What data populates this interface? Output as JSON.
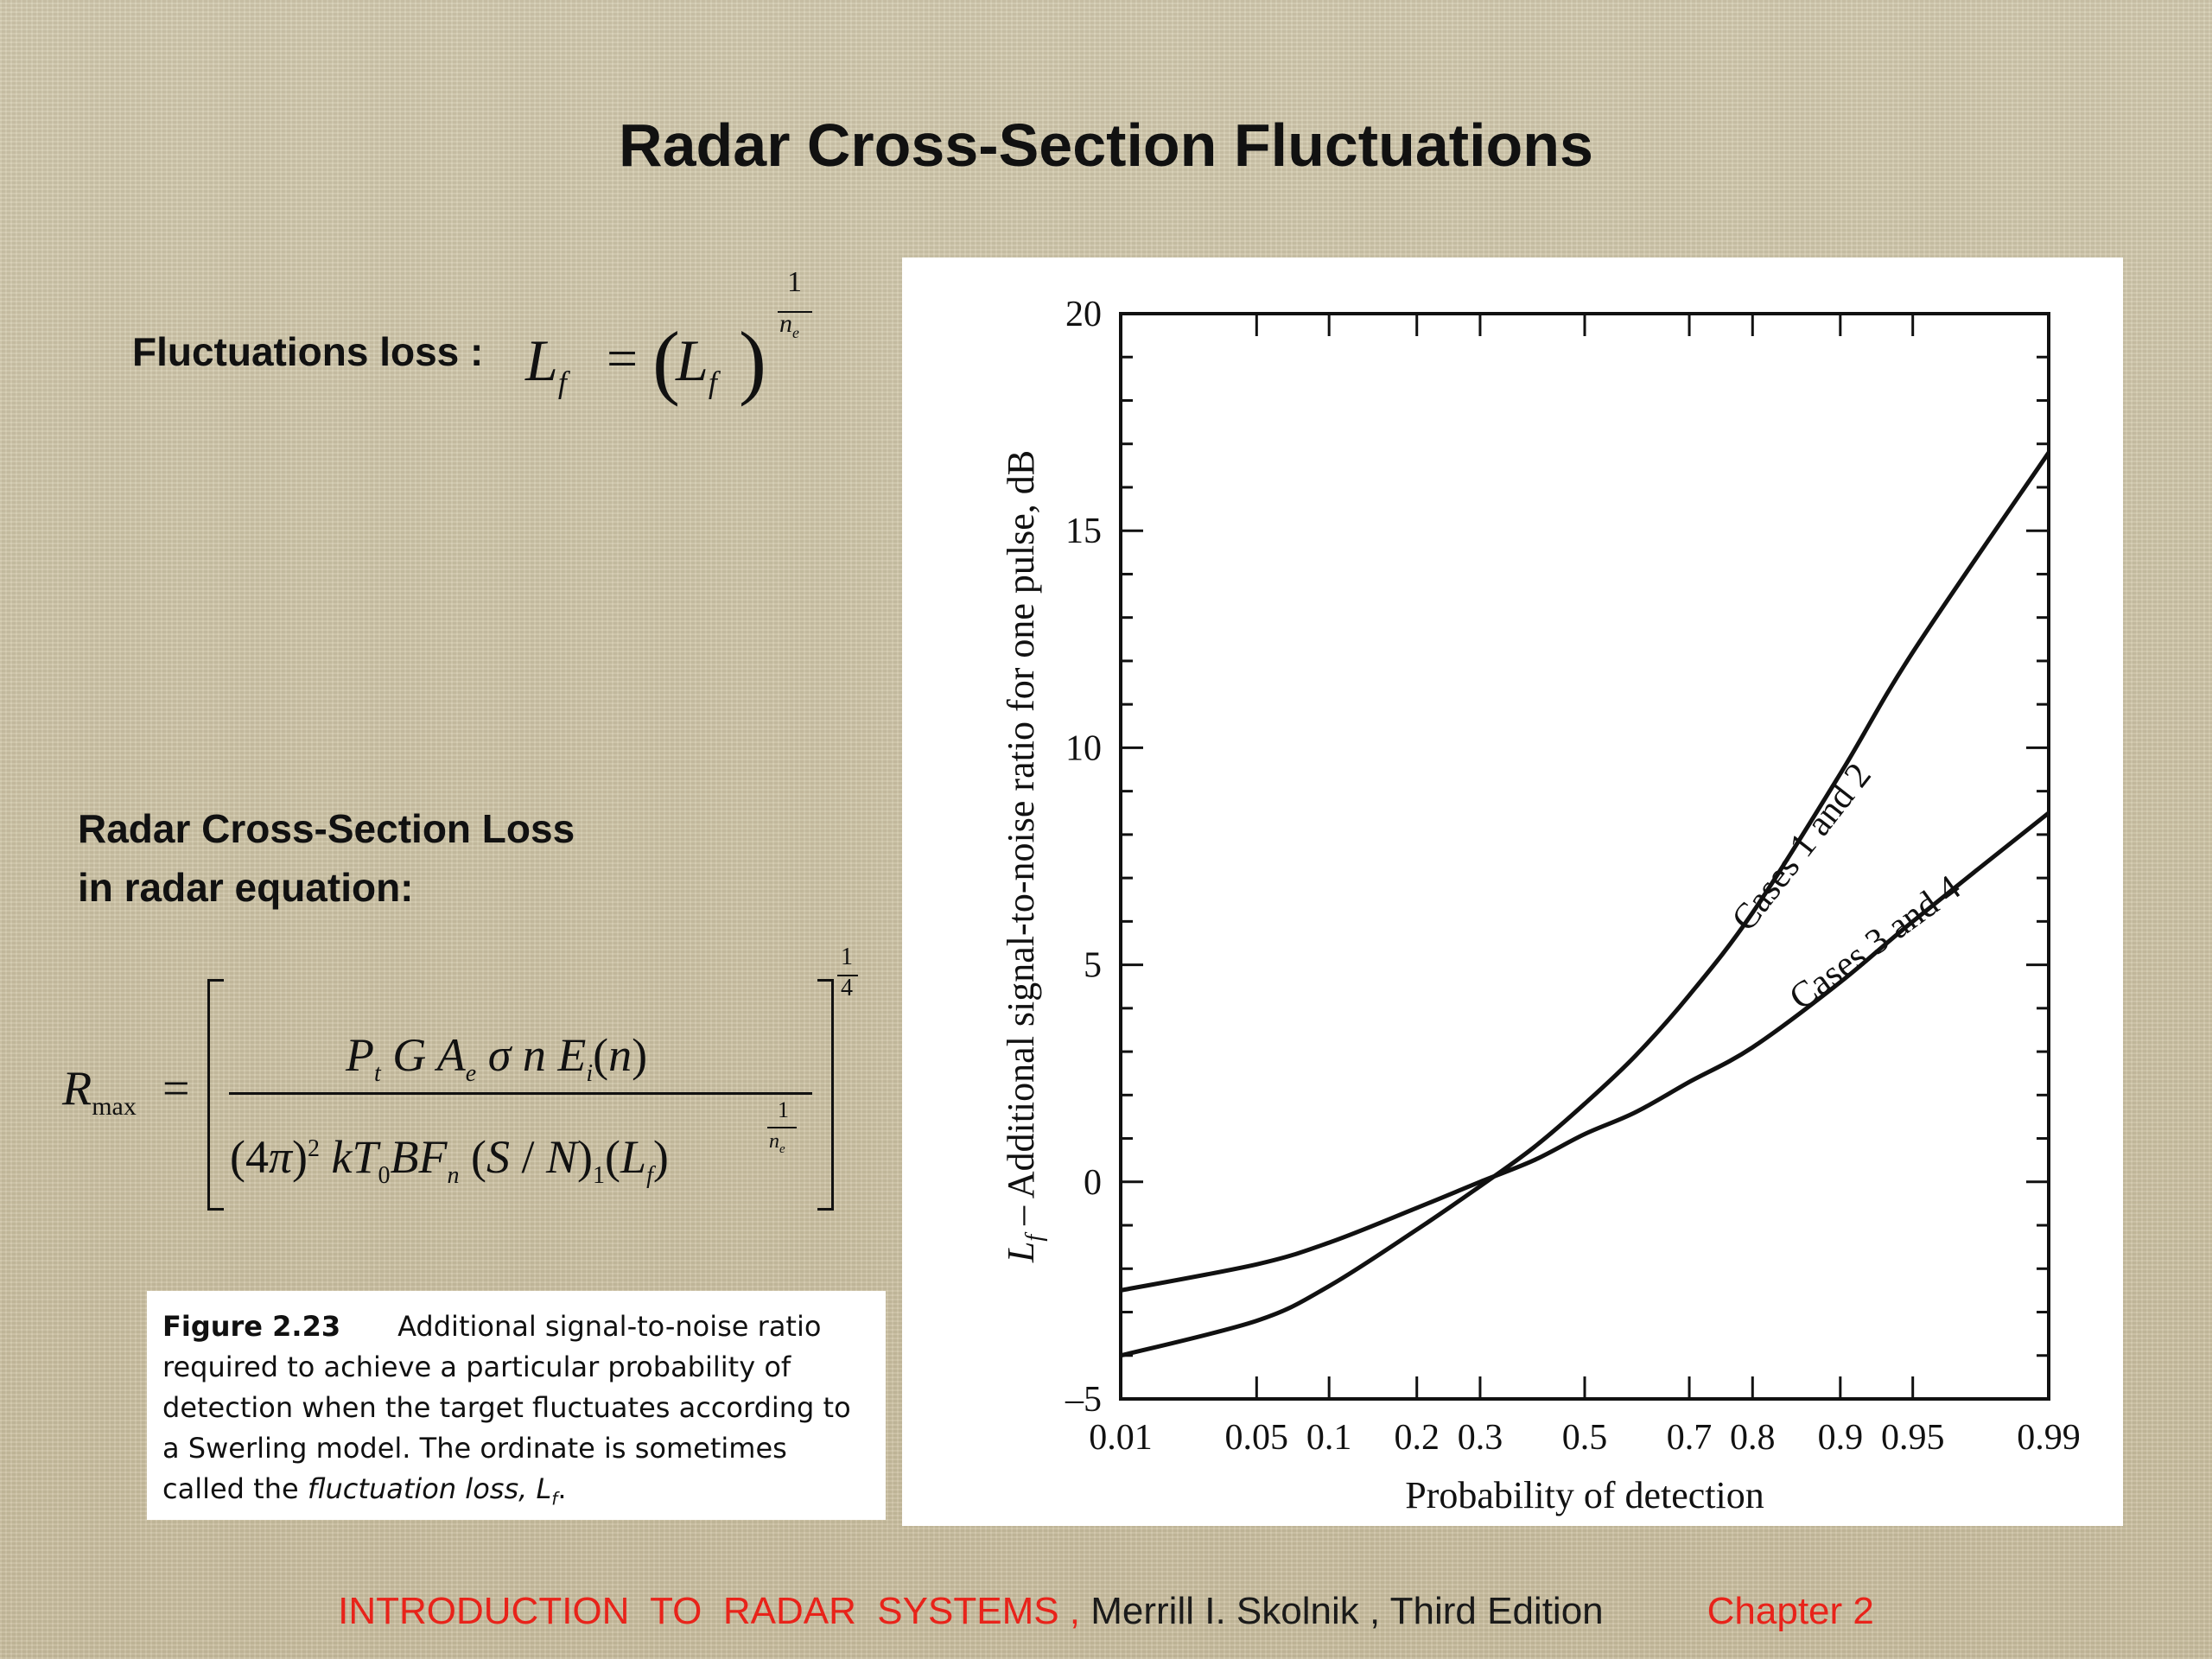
{
  "slide": {
    "title": "Radar Cross-Section Fluctuations",
    "fluct_label": "Fluctuations loss :",
    "rcs_label_line1": "Radar Cross-Section Loss",
    "rcs_label_line2": "in radar equation:"
  },
  "caption": {
    "figure": "Figure 2.23",
    "text": "Additional signal-to-noise ratio required to achieve a particular probability of detection when the target fluctuates according to a Swerling model. The ordinate is sometimes called the ",
    "emph": "fluctuation loss, L",
    "emph_sub": "f",
    "end": "."
  },
  "footer": {
    "book": "INTRODUCTION  TO  RADAR  SYSTEMS ,",
    "author": " Merrill I. Skolnik , Third Edition",
    "chapter": "Chapter 2",
    "book_color": "#e8231a",
    "chapter_color": "#e8231a"
  },
  "chart_data": {
    "type": "line",
    "xlabel": "Probability of detection",
    "ylabel": "– Additional signal-to-noise ratio for one pulse, dB",
    "ylabel_symbol": "L",
    "ylabel_symbol_sub": "f",
    "x_scale": "normal-probability",
    "x_ticks": [
      0.01,
      0.05,
      0.1,
      0.2,
      0.3,
      0.5,
      0.7,
      0.8,
      0.9,
      0.95,
      0.99
    ],
    "x_tick_labels": [
      "0.01",
      "0.05",
      "0.1",
      "0.2",
      "0.3",
      "0.5",
      "0.7",
      "0.8",
      "0.9",
      "0.95",
      "0.99"
    ],
    "ylim": [
      -5,
      20
    ],
    "y_ticks": [
      -5,
      0,
      5,
      10,
      15,
      20
    ],
    "y_tick_labels": [
      "–5",
      "0",
      "5",
      "10",
      "15",
      "20"
    ],
    "series": [
      {
        "name": "Cases 1 and 2",
        "x": [
          0.01,
          0.05,
          0.1,
          0.2,
          0.3,
          0.4,
          0.5,
          0.6,
          0.7,
          0.8,
          0.9,
          0.95,
          0.99
        ],
        "y": [
          -4.0,
          -3.2,
          -2.4,
          -1.1,
          -0.1,
          0.8,
          1.8,
          2.9,
          4.3,
          6.2,
          9.4,
          12.2,
          16.8
        ]
      },
      {
        "name": "Cases 3 and 4",
        "x": [
          0.01,
          0.05,
          0.1,
          0.2,
          0.3,
          0.4,
          0.5,
          0.6,
          0.7,
          0.8,
          0.9,
          0.95,
          0.99
        ],
        "y": [
          -2.5,
          -1.9,
          -1.4,
          -0.6,
          0.0,
          0.5,
          1.1,
          1.6,
          2.3,
          3.1,
          4.6,
          6.0,
          8.5
        ]
      }
    ],
    "grid": false,
    "legend": "curve labels"
  }
}
